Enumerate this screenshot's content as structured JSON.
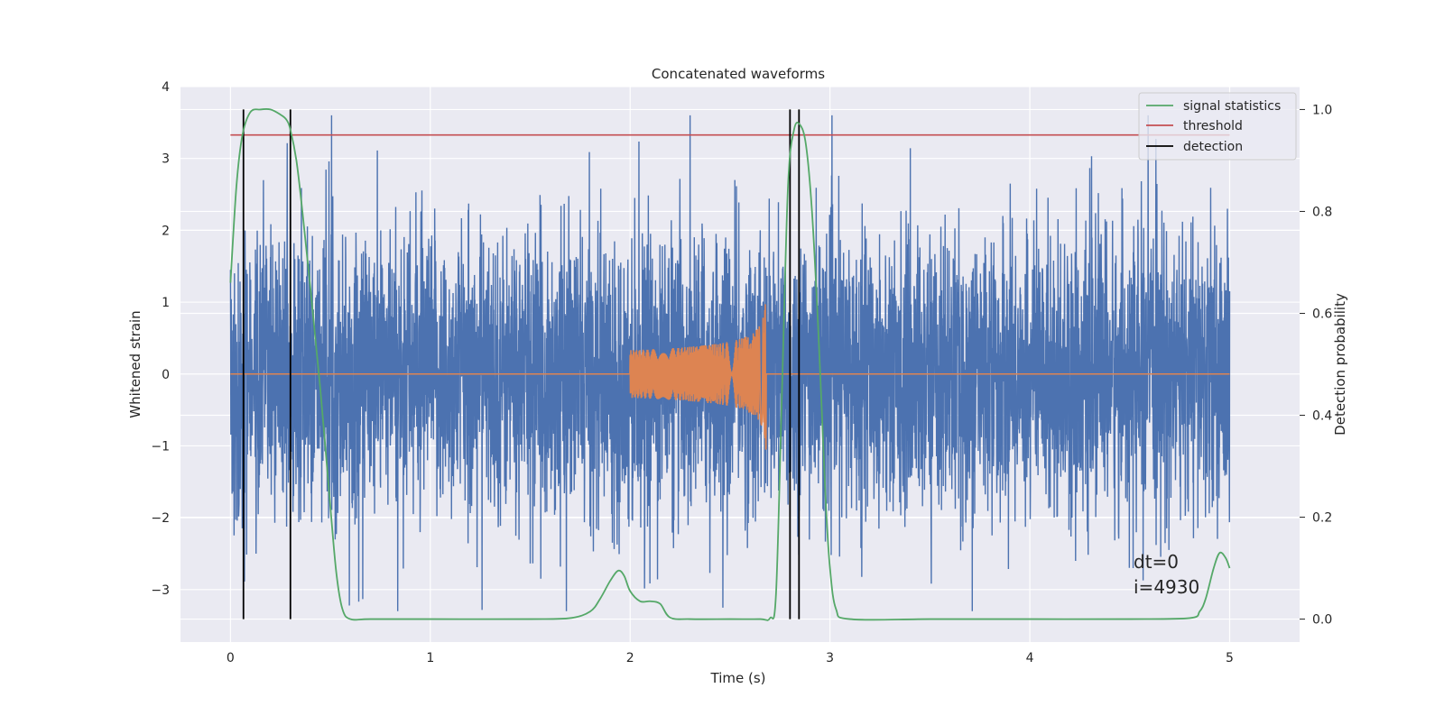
{
  "chart_data": {
    "type": "line",
    "title": "Concatenated waveforms",
    "xlabel": "Time (s)",
    "ylabel_left": "Whitened strain",
    "ylabel_right": "Detection probability",
    "xlim": [
      -0.25,
      5.35
    ],
    "ylim_left": [
      -3.73,
      4.0
    ],
    "ylim_right": [
      -0.045,
      1.045
    ],
    "x_ticks": [
      0,
      1,
      2,
      3,
      4,
      5
    ],
    "y_left_ticks": [
      -3,
      -2,
      -1,
      0,
      1,
      2,
      3,
      4
    ],
    "y_right_ticks": [
      "0.0",
      "0.2",
      "0.4",
      "0.6",
      "0.8",
      "1.0"
    ],
    "grid": true,
    "legend_position": "upper right",
    "legend": [
      "signal statistics",
      "threshold",
      "detection"
    ],
    "colors": {
      "background": "#eaeaf2",
      "noise": "#4c72b0",
      "injection": "#dd8452",
      "signal_statistics": "#55a868",
      "threshold": "#c44e52",
      "detection": "#000000",
      "grid": "#ffffff"
    },
    "series": [
      {
        "name": "",
        "axis": "left",
        "kind": "whitened noise strain",
        "x_range": [
          0,
          5
        ],
        "envelope_min": -3.3,
        "envelope_max": 3.6
      },
      {
        "name": "",
        "axis": "left",
        "kind": "injected chirp waveform",
        "x_range": [
          0,
          5
        ],
        "chirp_start": 2.0,
        "chirp_end": 2.68,
        "peak_amplitude": 1.15
      },
      {
        "name": "signal statistics",
        "axis": "right",
        "x": [
          0,
          0.03,
          0.06,
          0.1,
          0.15,
          0.2,
          0.25,
          0.28,
          0.3,
          0.33,
          0.36,
          0.4,
          0.45,
          0.5,
          0.53,
          0.56,
          0.6,
          0.7,
          1.0,
          1.5,
          1.7,
          1.8,
          1.85,
          1.9,
          1.94,
          1.97,
          2.0,
          2.05,
          2.1,
          2.15,
          2.2,
          2.3,
          2.5,
          2.65,
          2.7,
          2.73,
          2.76,
          2.79,
          2.82,
          2.85,
          2.88,
          2.91,
          2.94,
          2.96,
          2.98,
          3.0,
          3.03,
          3.1,
          3.5,
          4.0,
          4.5,
          4.8,
          4.85,
          4.88,
          4.92,
          4.95,
          4.98,
          5.0
        ],
        "y": [
          0.66,
          0.85,
          0.95,
          0.995,
          1.0,
          1.0,
          0.99,
          0.98,
          0.96,
          0.9,
          0.8,
          0.65,
          0.45,
          0.22,
          0.09,
          0.02,
          0.0,
          0.0,
          0.0,
          0.0,
          0.002,
          0.015,
          0.04,
          0.075,
          0.095,
          0.085,
          0.055,
          0.035,
          0.035,
          0.03,
          0.003,
          0.0,
          0.0,
          0.0,
          0.002,
          0.05,
          0.45,
          0.85,
          0.96,
          0.97,
          0.93,
          0.8,
          0.58,
          0.4,
          0.22,
          0.1,
          0.02,
          0.0,
          0.0,
          0.0,
          0.0,
          0.002,
          0.015,
          0.04,
          0.1,
          0.13,
          0.12,
          0.1
        ]
      },
      {
        "name": "threshold",
        "axis": "right",
        "value": 0.95,
        "x_range": [
          0,
          5
        ]
      },
      {
        "name": "detection",
        "axis": "right",
        "x": [
          0.065,
          0.3,
          2.8,
          2.845
        ],
        "y_range": [
          0.0,
          1.0
        ]
      }
    ],
    "annotations": [
      "dt=0",
      "i=4930"
    ]
  }
}
